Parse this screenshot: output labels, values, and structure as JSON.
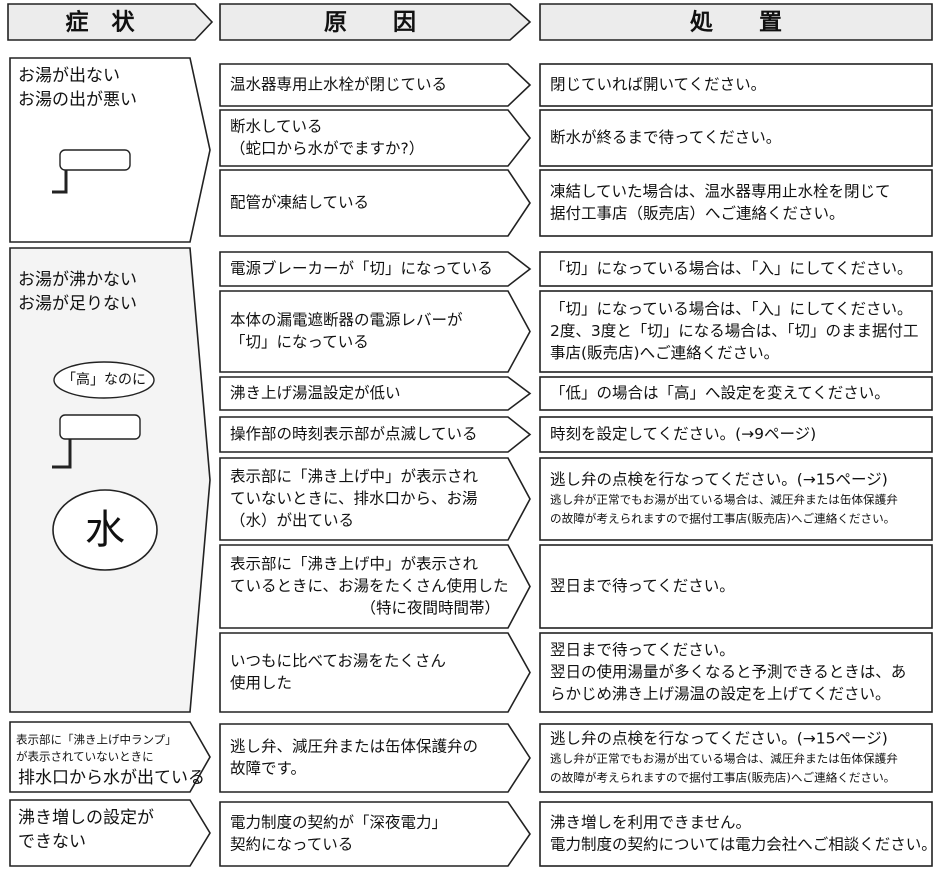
{
  "header": {
    "symptom": "症　状",
    "cause": "原　　因",
    "remedy": "処　　置"
  },
  "groups": [
    {
      "symptom": [
        "お湯が出ない",
        "お湯の出が悪い"
      ],
      "rows": [
        {
          "cause": [
            "温水器専用止水栓が閉じている"
          ],
          "remedy": [
            "閉じていれば開いてください。"
          ]
        },
        {
          "cause": [
            "断水している",
            "（蛇口から水がでますか?）"
          ],
          "remedy": [
            "断水が終るまで待ってください。"
          ]
        },
        {
          "cause": [
            "配管が凍結している"
          ],
          "remedy": [
            "凍結していた場合は、温水器専用止水栓を閉じて",
            "据付工事店（販売店）へご連絡ください。"
          ]
        }
      ]
    },
    {
      "symptom": [
        "お湯が沸かない",
        "お湯が足りない"
      ],
      "illustration_labels": [
        "「高」なのに",
        "水"
      ],
      "rows": [
        {
          "cause": [
            "電源ブレーカーが「切」になっている"
          ],
          "remedy": [
            "「切」になっている場合は、「入」にしてください。"
          ]
        },
        {
          "cause": [
            "本体の漏電遮断器の電源レバーが",
            "「切」になっている"
          ],
          "remedy": [
            "「切」になっている場合は、「入」にしてください。",
            "2度、3度と「切」になる場合は、「切」のまま据付工",
            "事店(販売店)へご連絡ください。"
          ]
        },
        {
          "cause": [
            "沸き上げ湯温設定が低い"
          ],
          "remedy": [
            "「低」の場合は「高」へ設定を変えてください。"
          ]
        },
        {
          "cause": [
            "操作部の時刻表示部が点滅している"
          ],
          "remedy": [
            "時刻を設定してください。(→9ページ)"
          ]
        },
        {
          "cause": [
            "表示部に「沸き上げ中」が表示され",
            "ていないときに、排水口から、お湯",
            "（水）が出ている"
          ],
          "remedy": [
            "逃し弁の点検を行なってください。(→15ページ)"
          ],
          "remedy_note": [
            "逃し弁が正常でもお湯が出ている場合は、減圧弁または缶体保護弁",
            "の故障が考えられますので据付工事店(販売店)へご連絡ください。"
          ]
        },
        {
          "cause": [
            "表示部に「沸き上げ中」が表示され",
            "ているときに、お湯をたくさん使用した",
            "（特に夜間時間帯）"
          ],
          "remedy": [
            "翌日まで待ってください。"
          ]
        },
        {
          "cause": [
            "いつもに比べてお湯をたくさん",
            "使用した"
          ],
          "remedy": [
            "翌日まで待ってください。",
            "翌日の使用湯量が多くなると予測できるときは、あ",
            "らかじめ沸き上げ湯温の設定を上げてください。"
          ]
        }
      ]
    },
    {
      "symptom_note": [
        "表示部に「沸き上げ中ランプ」",
        "が表示されていないときに"
      ],
      "symptom": [
        "排水口から水が出ている"
      ],
      "rows": [
        {
          "cause": [
            "逃し弁、減圧弁または缶体保護弁の",
            "故障です。"
          ],
          "remedy": [
            "逃し弁の点検を行なってください。(→15ページ)"
          ],
          "remedy_note": [
            "逃し弁が正常でもお湯が出ている場合は、減圧弁または缶体保護弁",
            "の故障が考えられますので据付工事店(販売店)へご連絡ください。"
          ]
        }
      ]
    },
    {
      "symptom": [
        "沸き増しの設定が",
        "できない"
      ],
      "rows": [
        {
          "cause": [
            "電力制度の契約が「深夜電力」",
            "契約になっている"
          ],
          "remedy": [
            "沸き増しを利用できません。",
            "電力制度の契約については電力会社へご相談ください。"
          ]
        }
      ]
    }
  ]
}
